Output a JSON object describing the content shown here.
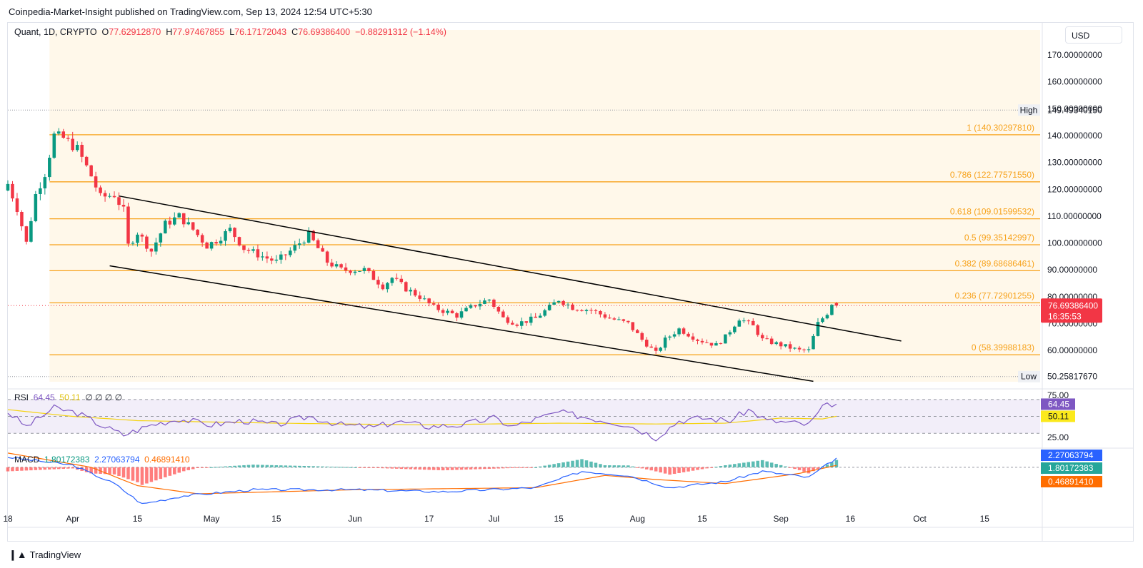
{
  "header": {
    "published": "Coinpedia-Market-Insight published on TradingView.com, Sep 13, 2024 12:54 UTC+5:30"
  },
  "legend": {
    "symbol": "Quant, 1D, CRYPTO",
    "o_label": "O",
    "o_value": "77.62912870",
    "h_label": "H",
    "h_value": "77.97467855",
    "l_label": "L",
    "l_value": "76.17172043",
    "c_label": "C",
    "c_value": "76.69386400",
    "change": "−0.88291312 (−1.14%)"
  },
  "currency": "USD",
  "footer": {
    "brand": "TradingView"
  },
  "colors": {
    "up": "#089981",
    "down": "#f23645",
    "fib": "#f7a21b",
    "rsi": "#7e57c2",
    "rsi_ma": "#f5d312",
    "macd": "#2962ff",
    "signal": "#ff6d00"
  },
  "chart_data": [
    {
      "type": "candlestick",
      "title": "Quant, 1D, CRYPTO",
      "ylim": [
        47,
        178
      ],
      "y_ticks": [
        "170.00000000",
        "160.00000000",
        "150.00000000",
        "140.00000000",
        "130.00000000",
        "120.00000000",
        "110.00000000",
        "100.00000000",
        "90.00000000",
        "80.00000000",
        "70.00000000",
        "60.00000000"
      ],
      "x_ticks": [
        "18",
        "Apr",
        "15",
        "May",
        "15",
        "Jun",
        "17",
        "Jul",
        "15",
        "Aug",
        "15",
        "Sep",
        "16",
        "Oct",
        "15"
      ],
      "x_range": [
        "2024-03-18",
        "2024-10-27"
      ],
      "anchors": [
        [
          "2024-03-18",
          122
        ],
        [
          "2024-03-20",
          113
        ],
        [
          "2024-03-22",
          100
        ],
        [
          "2024-03-24",
          118
        ],
        [
          "2024-03-26",
          126
        ],
        [
          "2024-03-28",
          140
        ],
        [
          "2024-03-30",
          139
        ],
        [
          "2024-04-02",
          135
        ],
        [
          "2024-04-05",
          125
        ],
        [
          "2024-04-07",
          117
        ],
        [
          "2024-04-10",
          118
        ],
        [
          "2024-04-12",
          112
        ],
        [
          "2024-04-13",
          99
        ],
        [
          "2024-04-15",
          104
        ],
        [
          "2024-04-18",
          97
        ],
        [
          "2024-04-21",
          107
        ],
        [
          "2024-04-24",
          110
        ],
        [
          "2024-04-27",
          105
        ],
        [
          "2024-04-30",
          99
        ],
        [
          "2024-05-02",
          101
        ],
        [
          "2024-05-05",
          105
        ],
        [
          "2024-05-08",
          98
        ],
        [
          "2024-05-12",
          95
        ],
        [
          "2024-05-15",
          93
        ],
        [
          "2024-05-18",
          97
        ],
        [
          "2024-05-22",
          103
        ],
        [
          "2024-05-26",
          93
        ],
        [
          "2024-05-29",
          90
        ],
        [
          "2024-06-03",
          90
        ],
        [
          "2024-06-07",
          84
        ],
        [
          "2024-06-09",
          87
        ],
        [
          "2024-06-12",
          83
        ],
        [
          "2024-06-15",
          80
        ],
        [
          "2024-06-18",
          76
        ],
        [
          "2024-06-23",
          73
        ],
        [
          "2024-06-27",
          77
        ],
        [
          "2024-06-30",
          79
        ],
        [
          "2024-07-03",
          72
        ],
        [
          "2024-07-06",
          70
        ],
        [
          "2024-07-10",
          72
        ],
        [
          "2024-07-13",
          76
        ],
        [
          "2024-07-15",
          79
        ],
        [
          "2024-07-18",
          76
        ],
        [
          "2024-07-22",
          75
        ],
        [
          "2024-07-26",
          72
        ],
        [
          "2024-07-30",
          70
        ],
        [
          "2024-08-02",
          64
        ],
        [
          "2024-08-05",
          59
        ],
        [
          "2024-08-07",
          64
        ],
        [
          "2024-08-10",
          68
        ],
        [
          "2024-08-14",
          64
        ],
        [
          "2024-08-18",
          62
        ],
        [
          "2024-08-20",
          65
        ],
        [
          "2024-08-23",
          72
        ],
        [
          "2024-08-26",
          69
        ],
        [
          "2024-08-28",
          64
        ],
        [
          "2024-09-01",
          62
        ],
        [
          "2024-09-05",
          60
        ],
        [
          "2024-09-07",
          60
        ],
        [
          "2024-09-09",
          70
        ],
        [
          "2024-09-11",
          74
        ],
        [
          "2024-09-12",
          77.6
        ],
        [
          "2024-09-13",
          76.69
        ]
      ],
      "last": {
        "date": "2024-09-13",
        "open": 77.6291287,
        "high": 77.97467855,
        "low": 76.17172043,
        "close": 76.693864
      },
      "high": {
        "label": "High",
        "value": "149.49340150"
      },
      "low": {
        "label": "Low",
        "value": "50.25817670"
      },
      "last_price_label": "76.69386400",
      "countdown": "16:35:53",
      "fibonacci": [
        {
          "level": "1",
          "price": 140.3029781,
          "label": "1 (140.30297810)"
        },
        {
          "level": "0.786",
          "price": 122.7757155,
          "label": "0.786 (122.77571550)"
        },
        {
          "level": "0.618",
          "price": 109.01599532,
          "label": "0.618 (109.01599532)"
        },
        {
          "level": "0.5",
          "price": 99.35142997,
          "label": "0.5 (99.35142997)"
        },
        {
          "level": "0.382",
          "price": 89.68686461,
          "label": "0.382 (89.68686461)"
        },
        {
          "level": "0.236",
          "price": 77.72901255,
          "label": "0.236 (77.72901255)"
        },
        {
          "level": "0",
          "price": 58.39988183,
          "label": "0 (58.39988183)"
        }
      ],
      "channel": {
        "upper": [
          [
            "2024-04-11",
            117.5
          ],
          [
            "2024-09-27",
            63.5
          ]
        ],
        "lower": [
          [
            "2024-04-09",
            91.5
          ],
          [
            "2024-09-08",
            48.5
          ]
        ]
      }
    },
    {
      "type": "line",
      "name": "RSI",
      "legend": {
        "label": "RSI",
        "value": "64.45",
        "ma_value": "50.11",
        "extras": [
          "∅",
          "∅",
          "∅",
          "∅"
        ]
      },
      "ylim": [
        15,
        80
      ],
      "y_ticks": [
        "75.00",
        "25.00"
      ],
      "bands": [
        70,
        50,
        30
      ],
      "series": [
        {
          "name": "RSI",
          "values_anchors": [
            [
              "2024-03-18",
              55
            ],
            [
              "2024-03-22",
              38
            ],
            [
              "2024-03-28",
              60
            ],
            [
              "2024-04-02",
              54
            ],
            [
              "2024-04-07",
              40
            ],
            [
              "2024-04-12",
              28
            ],
            [
              "2024-04-18",
              40
            ],
            [
              "2024-04-24",
              47
            ],
            [
              "2024-05-01",
              40
            ],
            [
              "2024-05-08",
              45
            ],
            [
              "2024-05-15",
              40
            ],
            [
              "2024-05-22",
              50
            ],
            [
              "2024-05-29",
              40
            ],
            [
              "2024-06-05",
              37
            ],
            [
              "2024-06-10",
              44
            ],
            [
              "2024-06-17",
              38
            ],
            [
              "2024-06-24",
              40
            ],
            [
              "2024-07-01",
              48
            ],
            [
              "2024-07-05",
              38
            ],
            [
              "2024-07-15",
              55
            ],
            [
              "2024-07-22",
              48
            ],
            [
              "2024-07-30",
              40
            ],
            [
              "2024-08-05",
              25
            ],
            [
              "2024-08-10",
              45
            ],
            [
              "2024-08-15",
              48
            ],
            [
              "2024-08-21",
              45
            ],
            [
              "2024-08-25",
              58
            ],
            [
              "2024-08-29",
              45
            ],
            [
              "2024-09-04",
              42
            ],
            [
              "2024-09-07",
              40
            ],
            [
              "2024-09-10",
              60
            ],
            [
              "2024-09-12",
              65
            ],
            [
              "2024-09-13",
              64.45
            ]
          ]
        },
        {
          "name": "RSI-based MA",
          "values_anchors": [
            [
              "2024-03-18",
              58
            ],
            [
              "2024-04-01",
              50
            ],
            [
              "2024-04-15",
              45
            ],
            [
              "2024-05-15",
              42
            ],
            [
              "2024-06-15",
              40
            ],
            [
              "2024-07-15",
              42
            ],
            [
              "2024-08-05",
              41
            ],
            [
              "2024-08-20",
              42
            ],
            [
              "2024-09-01",
              48
            ],
            [
              "2024-09-10",
              47
            ],
            [
              "2024-09-13",
              50.11
            ]
          ]
        }
      ]
    },
    {
      "type": "line",
      "name": "MACD",
      "legend": {
        "label": "MACD",
        "histogram": "1.80172383",
        "macd": "2.27063794",
        "signal": "0.46891410"
      },
      "ylim": [
        -10,
        4
      ],
      "series": [
        {
          "name": "MACD",
          "values_anchors": [
            [
              "2024-03-18",
              2.5
            ],
            [
              "2024-04-01",
              0.5
            ],
            [
              "2024-04-10",
              -4
            ],
            [
              "2024-04-16",
              -9
            ],
            [
              "2024-04-25",
              -7
            ],
            [
              "2024-05-10",
              -5.5
            ],
            [
              "2024-06-01",
              -5.5
            ],
            [
              "2024-06-20",
              -6
            ],
            [
              "2024-07-10",
              -5
            ],
            [
              "2024-07-20",
              -1
            ],
            [
              "2024-07-30",
              -2
            ],
            [
              "2024-08-08",
              -5
            ],
            [
              "2024-08-20",
              -3.5
            ],
            [
              "2024-08-28",
              -1
            ],
            [
              "2024-09-07",
              -2.5
            ],
            [
              "2024-09-13",
              2.27063794
            ]
          ]
        },
        {
          "name": "Signal",
          "values_anchors": [
            [
              "2024-03-18",
              3.5
            ],
            [
              "2024-04-05",
              0
            ],
            [
              "2024-04-15",
              -4.5
            ],
            [
              "2024-04-28",
              -6.5
            ],
            [
              "2024-06-01",
              -5.5
            ],
            [
              "2024-07-10",
              -5
            ],
            [
              "2024-07-25",
              -2
            ],
            [
              "2024-08-05",
              -3
            ],
            [
              "2024-08-20",
              -4
            ],
            [
              "2024-09-05",
              -1.5
            ],
            [
              "2024-09-13",
              0.4689141
            ]
          ]
        }
      ]
    }
  ]
}
